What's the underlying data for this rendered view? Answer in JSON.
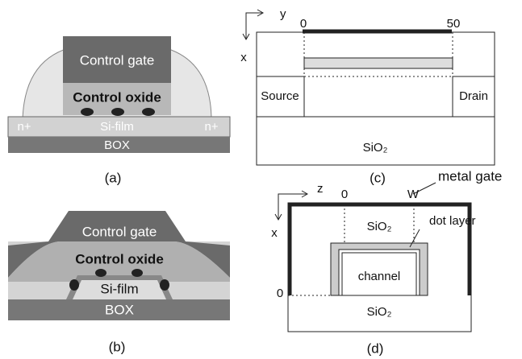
{
  "panel_a": {
    "control_gate": "Control gate",
    "control_oxide": "Control oxide",
    "n_left": "n+",
    "si_film": "Si-film",
    "n_right": "n+",
    "box": "BOX",
    "caption": "(a)"
  },
  "panel_b": {
    "control_gate": "Control gate",
    "control_oxide": "Control oxide",
    "si_film": "Si-film",
    "box": "BOX",
    "caption": "(b)"
  },
  "panel_c": {
    "y_axis": "y",
    "tick_0": "0",
    "tick_50": "50",
    "x_axis": "x",
    "source": "Source",
    "drain": "Drain",
    "oxide": "SiO₂",
    "caption": "(c)"
  },
  "panel_d": {
    "z_axis": "z",
    "tick_0": "0",
    "tick_w": "W",
    "metal_gate": "metal gate",
    "x_axis": "x",
    "oxide_top": "SiO₂",
    "dot_layer": "dot layer",
    "channel": "channel",
    "x_zero": "0",
    "oxide_bottom": "SiO₂",
    "caption": "(d)"
  }
}
